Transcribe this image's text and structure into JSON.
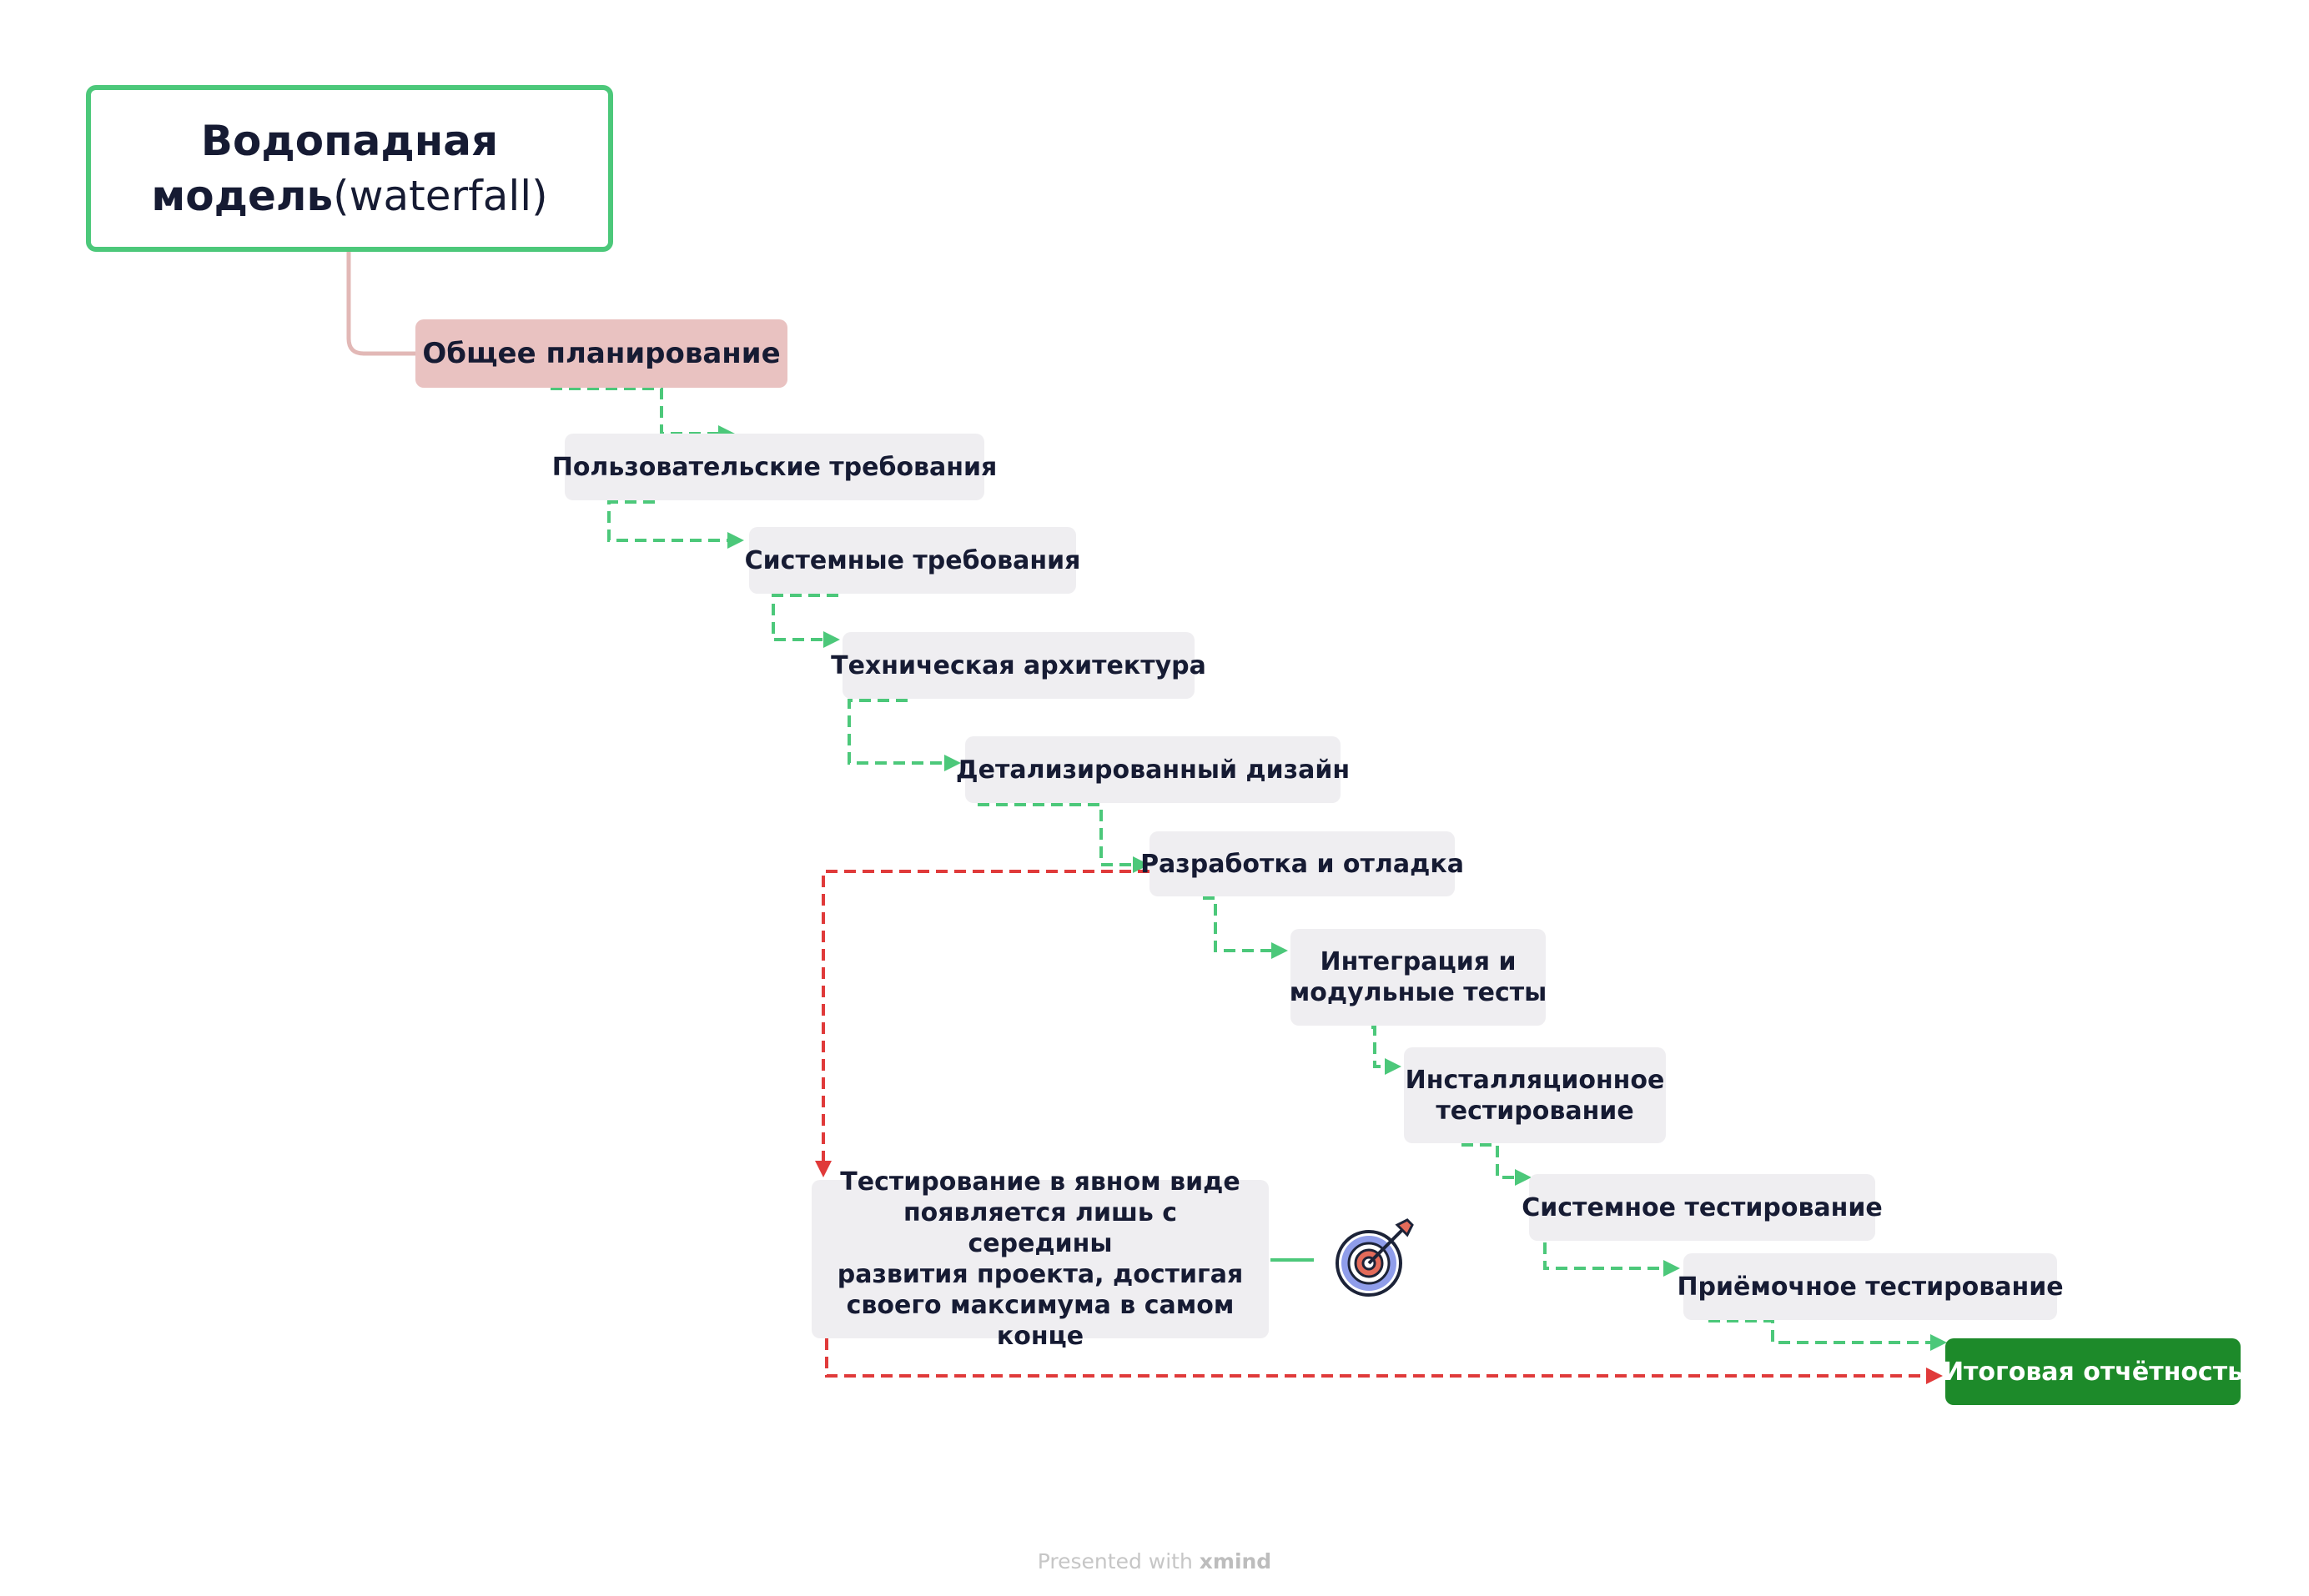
{
  "root": {
    "title_line1": "Водопадная",
    "title_line2_bold": "модель",
    "title_line2_light": "(waterfall)"
  },
  "main_topic": "Общее планирование",
  "steps": [
    {
      "label": "Пользовательские требования"
    },
    {
      "label": "Системные требования"
    },
    {
      "label": "Техническая архитектура"
    },
    {
      "label": "Детализированный дизайн"
    },
    {
      "label": "Разработка и отладка"
    },
    {
      "label_line1": "Интеграция и",
      "label_line2": "модульные тесты"
    },
    {
      "label_line1": "Инсталляционное",
      "label_line2": "тестирование"
    },
    {
      "label": "Системное тестирование"
    },
    {
      "label": "Приёмочное тестирование"
    }
  ],
  "final": "Итоговая отчётность",
  "note": {
    "lines": [
      "Тестирование в явном виде",
      "появляется лишь с середины",
      "развития проекта, достигая",
      "своего максимума в самом конце"
    ]
  },
  "icons": {
    "target": "target-with-arrow-icon"
  },
  "colors": {
    "root_border": "#4cc87a",
    "main_topic_bg": "#e9c2c1",
    "step_bg": "#efeef1",
    "final_bg": "#1d8a2a",
    "green_connector": "#4cc87a",
    "red_connector": "#e03a3a",
    "trunk_line": "#e2b8b6"
  },
  "footer": {
    "prefix": "Presented with ",
    "brand": "xmind"
  }
}
